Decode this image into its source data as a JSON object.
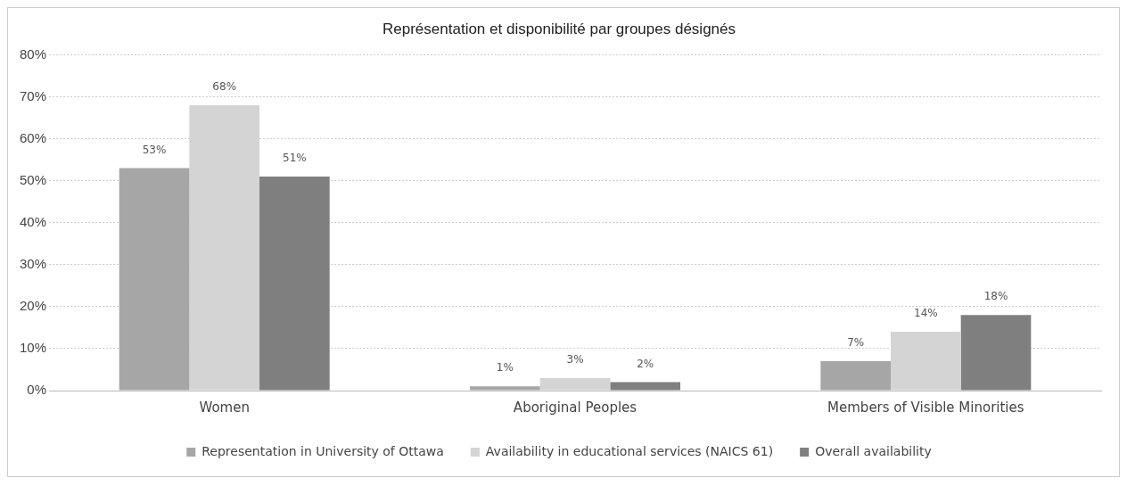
{
  "chart_data": {
    "type": "bar",
    "title": "Représentation et disponibilité par groupes désignés",
    "categories": [
      "Women",
      "Aboriginal Peoples",
      "Members of Visible Minorities"
    ],
    "series": [
      {
        "name": "Representation in University of Ottawa",
        "color": "#a6a6a6",
        "values": [
          53,
          1,
          7
        ],
        "value_labels": [
          "53%",
          "1%",
          "7%"
        ]
      },
      {
        "name": "Availability in educational services (NAICS 61)",
        "color": "#d4d4d4",
        "values": [
          68,
          3,
          14
        ],
        "value_labels": [
          "68%",
          "3%",
          "14%"
        ]
      },
      {
        "name": "Overall availability",
        "color": "#7f7f7f",
        "values": [
          51,
          2,
          18
        ],
        "value_labels": [
          "51%",
          "2%",
          "18%"
        ]
      }
    ],
    "ylim": [
      0,
      80
    ],
    "yticks": [
      {
        "value": 0,
        "label": "0%"
      },
      {
        "value": 10,
        "label": "10%"
      },
      {
        "value": 20,
        "label": "20%"
      },
      {
        "value": 30,
        "label": "30%"
      },
      {
        "value": 40,
        "label": "40%"
      },
      {
        "value": 50,
        "label": "50%"
      },
      {
        "value": 60,
        "label": "60%"
      },
      {
        "value": 70,
        "label": "70%"
      },
      {
        "value": 80,
        "label": "80%"
      }
    ],
    "grid": "y",
    "legend": "bottom"
  }
}
